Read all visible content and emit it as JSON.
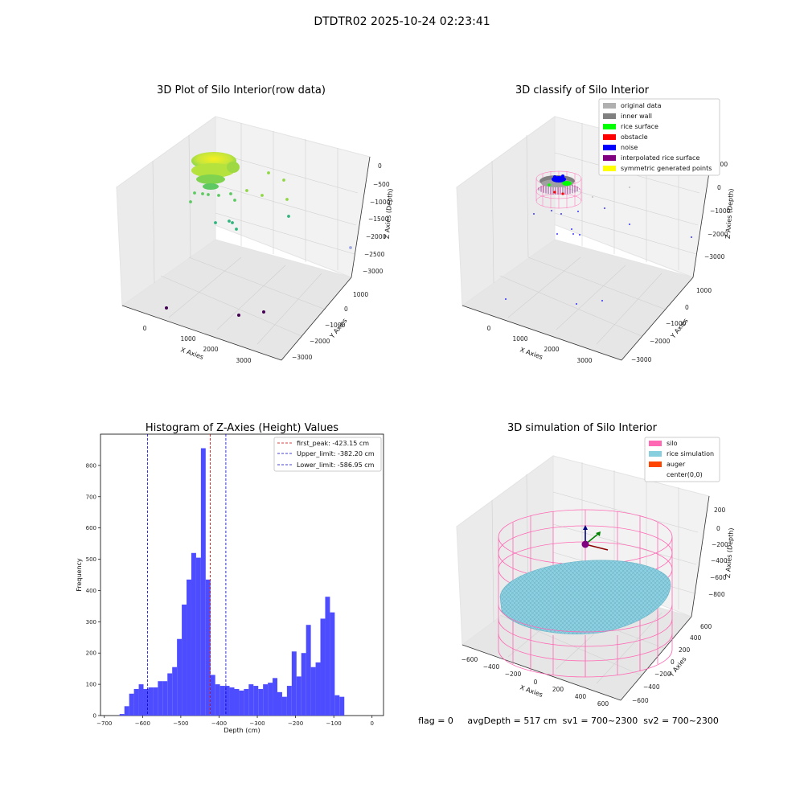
{
  "suptitle": "DTDTR02 2025-10-24 02:23:41",
  "status_line": "flag = 0     avgDepth = 517 cm  sv1 = 700~2300  sv2 = 700~2300",
  "colors": {
    "hist_bar": "#4d4dff",
    "first_peak": "#cc0000",
    "limit_lines": "#0000cc",
    "silo_wire": "#ff69b4",
    "rice_surface": "#87cedf"
  },
  "chart_data": [
    {
      "type": "scatter3d",
      "title": "3D Plot of Silo Interior(row data)",
      "xlabel": "X Axies",
      "ylabel": "Y Axies",
      "zlabel": "Z Axies (Depth)",
      "x_ticks": [
        "0",
        "1000",
        "2000",
        "3000"
      ],
      "y_ticks": [
        "1000",
        "0",
        "−1000",
        "−2000",
        "−3000"
      ],
      "z_ticks": [
        "0",
        "−500",
        "−1000",
        "−1500",
        "−2000",
        "−2500",
        "−3000"
      ],
      "colormap": "viridis"
    },
    {
      "type": "scatter3d",
      "title": "3D classify of Silo Interior",
      "xlabel": "X Axies",
      "ylabel": "Y Axies",
      "zlabel": "Z Axies (Depth)",
      "x_ticks": [
        "0",
        "1000",
        "2000",
        "3000"
      ],
      "y_ticks": [
        "1000",
        "0",
        "−1000",
        "−2000",
        "−3000"
      ],
      "z_ticks": [
        "1000",
        "0",
        "−1000",
        "−2000",
        "−3000"
      ],
      "legend_position": "upper-right",
      "legend": [
        {
          "label": "original data",
          "color": "#b0b0b0"
        },
        {
          "label": "inner wall",
          "color": "#808080"
        },
        {
          "label": "rice surface",
          "color": "#00ff00"
        },
        {
          "label": "obstacle",
          "color": "#ff0000"
        },
        {
          "label": "noise",
          "color": "#0000ff"
        },
        {
          "label": "interpolated rice surface",
          "color": "#800080"
        },
        {
          "label": "symmetric generated points",
          "color": "#ffff00"
        }
      ]
    },
    {
      "type": "bar",
      "title": "Histogram of Z-Axies (Height) Values",
      "xlabel": "Depth (cm)",
      "ylabel": "Frequency",
      "xlim": [
        -710,
        30
      ],
      "ylim": [
        0,
        900
      ],
      "x_ticks": [
        -700,
        -600,
        -500,
        -400,
        -300,
        -200,
        -100,
        0
      ],
      "y_ticks": [
        0,
        100,
        200,
        300,
        400,
        500,
        600,
        700,
        800
      ],
      "bin_start": -660,
      "bin_width": 12.5,
      "values": [
        5,
        30,
        70,
        85,
        100,
        85,
        90,
        90,
        110,
        110,
        135,
        155,
        245,
        355,
        435,
        520,
        505,
        855,
        435,
        130,
        100,
        95,
        95,
        90,
        85,
        80,
        85,
        100,
        95,
        85,
        100,
        105,
        120,
        75,
        60,
        95,
        205,
        125,
        200,
        290,
        155,
        170,
        310,
        380,
        330,
        65,
        60
      ],
      "vlines": [
        {
          "label": "first_peak: -423.15 cm",
          "x": -423.15,
          "style": "first_peak"
        },
        {
          "label": "Upper_limit: -382.20 cm",
          "x": -382.2,
          "style": "limit"
        },
        {
          "label": "Lower_limit: -586.95 cm",
          "x": -586.95,
          "style": "limit"
        }
      ],
      "legend_position": "upper-right"
    },
    {
      "type": "surface3d",
      "title": "3D simulation of Silo Interior",
      "xlabel": "X Axies",
      "ylabel": "Y Axies",
      "zlabel": "Z Axies (Depth)",
      "x_ticks": [
        "−600",
        "−400",
        "−200",
        "0",
        "200",
        "400",
        "600"
      ],
      "y_ticks": [
        "600",
        "400",
        "200",
        "0",
        "−200",
        "−400",
        "−600"
      ],
      "z_ticks": [
        "200",
        "0",
        "−200",
        "−400",
        "−600",
        "−800"
      ],
      "legend_position": "upper-right",
      "legend": [
        {
          "label": "silo",
          "color": "#ff69b4"
        },
        {
          "label": "rice simulation",
          "color": "#87cedf"
        },
        {
          "label": "auger",
          "color": "#ff4500"
        },
        {
          "label": "center(0,0)",
          "color": "#ffffff"
        }
      ]
    }
  ]
}
